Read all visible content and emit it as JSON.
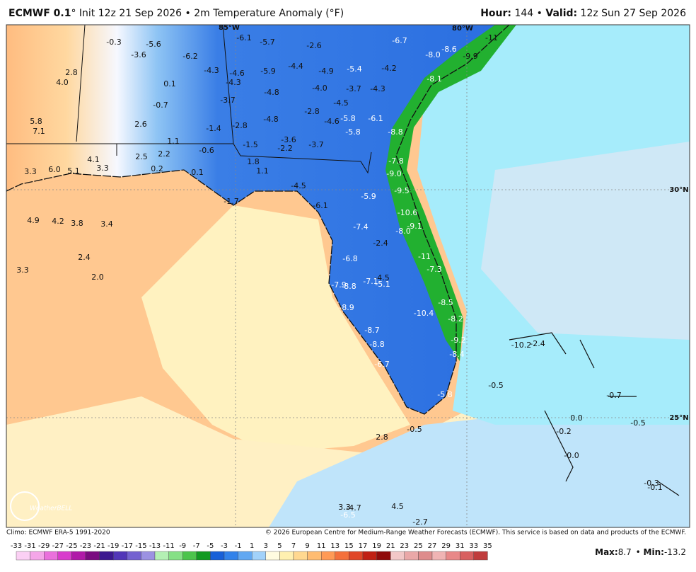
{
  "header": {
    "model": "ECMWF 0.1",
    "init": "° Init 12z 21 Sep 2026 • 2m Temperature Anomaly (°F)",
    "hour_label": "Hour:",
    "hour": " 144 • ",
    "valid_label": "Valid:",
    "valid": " 12z Sun 27 Sep 2026"
  },
  "map": {
    "grid_labels": [
      "85°W",
      "80°W",
      "30°N",
      "25°N"
    ],
    "logo": "WeatherBELL",
    "labels": [
      "-0.3",
      "-5.6",
      "-3.6",
      "-6.2",
      "-6.1",
      "-5.7",
      "-2.6",
      "-6.7",
      "-11",
      "-8.6",
      "-8.0",
      "-9.9",
      "2.8",
      "4.0",
      "0.1",
      "-4.3",
      "-4.6",
      "-4.3",
      "-5.9",
      "-4.4",
      "-4.9",
      "-5.4",
      "-4.2",
      "-8.1",
      "-0.7",
      "-3.7",
      "-4.8",
      "-4.0",
      "-3.7",
      "-4.3",
      "-4.5",
      "5.8",
      "7.1",
      "2.6",
      "-1.4",
      "-2.8",
      "-4.8",
      "-2.8",
      "-4.6",
      "-5.8",
      "-6.1",
      "-5.8",
      "-8.8",
      "1.1",
      "-0.6",
      "-1.5",
      "-3.6",
      "-2.2",
      "-3.7",
      "2.5",
      "2.2",
      "4.1",
      "1.8",
      "1.1",
      "-7.8",
      "3.3",
      "6.0",
      "5.1",
      "3.3",
      "0.2",
      "0.1",
      "-9.0",
      "-4.5",
      "-5.9",
      "-9.5",
      "-1.7",
      "-6.1",
      "-10.6",
      "4.9",
      "4.2",
      "3.8",
      "3.4",
      "-7.4",
      "-8.0",
      "-9.1",
      "-2.4",
      "-11",
      "2.4",
      "-6.8",
      "-7.3",
      "3.3",
      "2.0",
      "-4.5",
      "-7.1",
      "-5.1",
      "-7.9",
      "-8.8",
      "-8.5",
      "-10.4",
      "-8.9",
      "-8.2",
      "-8.7",
      "-9.2",
      "-10.2",
      "-2.4",
      "-8.8",
      "-8.4",
      "-6.7",
      "-0.5",
      "-5.8",
      "-0.7",
      "0.0",
      "-0.5",
      "-0.5",
      "2.8",
      "-0.2",
      "-0.0",
      "-0.3",
      "-0.1",
      "-2.7",
      "3.3",
      "-4.7",
      "4.5",
      "-6.5"
    ]
  },
  "footer": {
    "climo": "Climo: ECMWF ERA-5 1991-2020",
    "copyright": "© 2026 European Centre for Medium-Range Weather Forecasts (ECMWF). This service is based on data and products of the ECMWF.",
    "max_label": "Max:",
    "max": "8.7",
    "sep": " • ",
    "min_label": "Min:",
    "min": "-13.2"
  },
  "colorbar": {
    "labels": [
      -33,
      -31,
      -29,
      -27,
      -25,
      -23,
      -21,
      -19,
      -17,
      -15,
      -13,
      -11,
      -9,
      -7,
      -5,
      -3,
      -1,
      1,
      3,
      5,
      7,
      9,
      11,
      13,
      15,
      17,
      19,
      21,
      23,
      25,
      27,
      29,
      31,
      33,
      35
    ],
    "colors": [
      "#fbd0f4",
      "#f4a6e8",
      "#ea70dc",
      "#d83ccc",
      "#b01aa8",
      "#7a0c80",
      "#3c1890",
      "#5236b8",
      "#7462d0",
      "#9c92e2",
      "#b4f0b4",
      "#86e086",
      "#4cc44c",
      "#129a22",
      "#1860d8",
      "#3282ea",
      "#62a8f2",
      "#a2d2fa",
      "#fffbe0",
      "#fff0b0",
      "#ffd890",
      "#ffbc72",
      "#ff9a56",
      "#f4703c",
      "#e04628",
      "#c02014",
      "#900c0c",
      "#f2c8c8",
      "#eaa8a8",
      "#de8c8c",
      "#f0b4b4",
      "#e88888",
      "#d86060",
      "#c03c3c",
      "#982424"
    ]
  }
}
